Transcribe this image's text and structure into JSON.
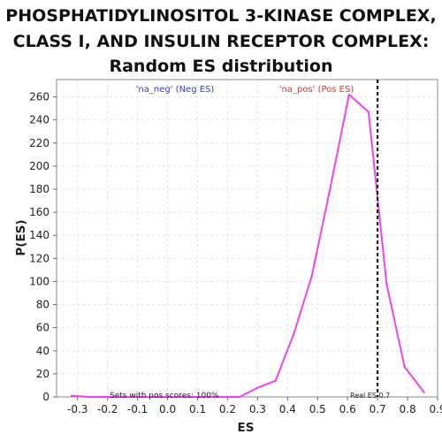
{
  "title": {
    "line1": "PHOSPHATIDYLINOSITOL 3-KINASE COMPLEX,",
    "line2": "CLASS I, AND INSULIN RECEPTOR COMPLEX:",
    "line3": "Random ES distribution"
  },
  "colors": {
    "curve": "#ee44ee",
    "neg_label": "#3a3acc",
    "pos_label": "#dd3333",
    "real_es_line": "#000000"
  },
  "chart_data": {
    "type": "line",
    "title": "PHOSPHATIDYLINOSITOL 3-KINASE COMPLEX, CLASS I, AND INSULIN RECEPTOR COMPLEX: Random ES distribution",
    "xlabel": "ES",
    "ylabel": "P(ES)",
    "xlim": [
      -0.37,
      0.9
    ],
    "ylim": [
      0,
      275
    ],
    "grid": true,
    "xticks": [
      -0.3,
      -0.2,
      -0.1,
      0.0,
      0.1,
      0.2,
      0.3,
      0.4,
      0.5,
      0.6,
      0.7,
      0.8,
      0.9
    ],
    "yticks": [
      0,
      20,
      40,
      60,
      80,
      100,
      120,
      140,
      160,
      180,
      200,
      220,
      240,
      260
    ],
    "xtick_labels": [
      "-0.3",
      "-0.2",
      "-0.1",
      "0.0",
      "0.1",
      "0.2",
      "0.3",
      "0.4",
      "0.5",
      "0.6",
      "0.7",
      "0.8",
      "0.9"
    ],
    "ytick_labels": [
      "0",
      "20",
      "40",
      "60",
      "80",
      "100",
      "120",
      "140",
      "160",
      "180",
      "200",
      "220",
      "240",
      "260"
    ],
    "series": [
      {
        "x": [
          -0.32,
          -0.26,
          -0.2,
          -0.14,
          -0.08,
          -0.02,
          0.04,
          0.1,
          0.16,
          0.24,
          0.3,
          0.36,
          0.42,
          0.48,
          0.54,
          0.605,
          0.67,
          0.73,
          0.79,
          0.855
        ],
        "y": [
          1,
          0,
          0,
          0,
          0,
          0,
          0,
          0,
          0,
          0,
          8,
          14,
          54,
          104,
          178,
          262,
          247,
          98,
          26,
          4
        ]
      }
    ],
    "real_es": 0.7,
    "annotations": {
      "neg_label": "'na_neg' (Neg ES)",
      "pos_label": "'na_pos' (Pos ES)",
      "sets_pos": "Sets with pos scores: 100%",
      "real_es": "Real ES 0.7"
    }
  }
}
